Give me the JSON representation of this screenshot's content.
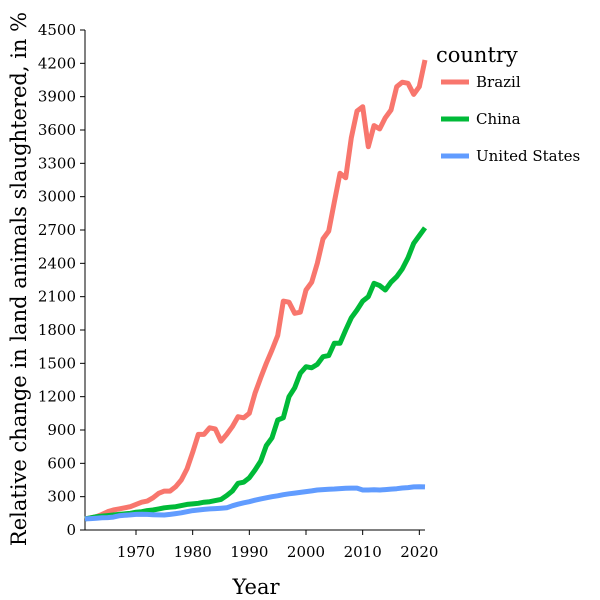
{
  "chart_data": {
    "type": "line",
    "title": "",
    "xlabel": "Year",
    "ylabel": "Relative change in land animals slaughtered, in %",
    "xlim": [
      1961,
      2021
    ],
    "ylim": [
      0,
      4500
    ],
    "x_ticks": [
      1970,
      1980,
      1990,
      2000,
      2010,
      2020
    ],
    "y_ticks": [
      0,
      300,
      600,
      900,
      1200,
      1500,
      1800,
      2100,
      2400,
      2700,
      3000,
      3300,
      3600,
      3900,
      4200,
      4500
    ],
    "grid": false,
    "legend": {
      "title": "country",
      "placement": "right"
    },
    "series": [
      {
        "name": "Brazil",
        "color": "#f8766d",
        "x": [
          1961,
          1962,
          1963,
          1964,
          1965,
          1966,
          1967,
          1968,
          1969,
          1970,
          1971,
          1972,
          1973,
          1974,
          1975,
          1976,
          1977,
          1978,
          1979,
          1980,
          1981,
          1982,
          1983,
          1984,
          1985,
          1986,
          1987,
          1988,
          1989,
          1990,
          1991,
          1992,
          1993,
          1994,
          1995,
          1996,
          1997,
          1998,
          1999,
          2000,
          2001,
          2002,
          2003,
          2004,
          2005,
          2006,
          2007,
          2008,
          2009,
          2010,
          2011,
          2012,
          2013,
          2014,
          2015,
          2016,
          2017,
          2018,
          2019,
          2020,
          2021
        ],
        "y": [
          100,
          110,
          120,
          140,
          165,
          180,
          190,
          200,
          210,
          230,
          250,
          260,
          290,
          330,
          350,
          350,
          390,
          450,
          550,
          700,
          860,
          860,
          920,
          910,
          800,
          860,
          930,
          1020,
          1010,
          1050,
          1230,
          1370,
          1500,
          1620,
          1750,
          2060,
          2050,
          1950,
          1960,
          2160,
          2230,
          2400,
          2620,
          2690,
          2950,
          3210,
          3170,
          3530,
          3770,
          3810,
          3450,
          3640,
          3610,
          3710,
          3780,
          3990,
          4030,
          4020,
          3920,
          3990,
          4230
        ]
      },
      {
        "name": "China",
        "color": "#00ba38",
        "x": [
          1961,
          1962,
          1963,
          1964,
          1965,
          1966,
          1967,
          1968,
          1969,
          1970,
          1971,
          1972,
          1973,
          1974,
          1975,
          1976,
          1977,
          1978,
          1979,
          1980,
          1981,
          1982,
          1983,
          1984,
          1985,
          1986,
          1987,
          1988,
          1989,
          1990,
          1991,
          1992,
          1993,
          1994,
          1995,
          1996,
          1997,
          1998,
          1999,
          2000,
          2001,
          2002,
          2003,
          2004,
          2005,
          2006,
          2007,
          2008,
          2009,
          2010,
          2011,
          2012,
          2013,
          2014,
          2015,
          2016,
          2017,
          2018,
          2019,
          2020,
          2021
        ],
        "y": [
          100,
          110,
          120,
          125,
          130,
          135,
          140,
          145,
          150,
          160,
          165,
          175,
          180,
          190,
          200,
          205,
          210,
          220,
          230,
          235,
          240,
          250,
          255,
          265,
          275,
          310,
          350,
          420,
          430,
          470,
          540,
          620,
          760,
          830,
          990,
          1010,
          1200,
          1280,
          1410,
          1470,
          1460,
          1490,
          1560,
          1570,
          1680,
          1680,
          1800,
          1910,
          1980,
          2060,
          2100,
          2220,
          2200,
          2160,
          2230,
          2280,
          2350,
          2450,
          2580,
          2650,
          2720
        ]
      },
      {
        "name": "United States",
        "color": "#619cff",
        "x": [
          1961,
          1962,
          1963,
          1964,
          1965,
          1966,
          1967,
          1968,
          1969,
          1970,
          1971,
          1972,
          1973,
          1974,
          1975,
          1976,
          1977,
          1978,
          1979,
          1980,
          1981,
          1982,
          1983,
          1984,
          1985,
          1986,
          1987,
          1988,
          1989,
          1990,
          1991,
          1992,
          1993,
          1994,
          1995,
          1996,
          1997,
          1998,
          1999,
          2000,
          2001,
          2002,
          2003,
          2004,
          2005,
          2006,
          2007,
          2008,
          2009,
          2010,
          2011,
          2012,
          2013,
          2014,
          2015,
          2016,
          2017,
          2018,
          2019,
          2020,
          2021
        ],
        "y": [
          100,
          103,
          106,
          110,
          112,
          116,
          128,
          132,
          136,
          140,
          142,
          140,
          138,
          136,
          135,
          140,
          148,
          155,
          165,
          175,
          180,
          185,
          190,
          193,
          196,
          200,
          218,
          232,
          245,
          255,
          268,
          280,
          290,
          300,
          308,
          318,
          326,
          332,
          338,
          346,
          352,
          360,
          364,
          367,
          369,
          373,
          375,
          377,
          377,
          360,
          360,
          362,
          360,
          364,
          368,
          372,
          378,
          382,
          388,
          390,
          388
        ]
      }
    ]
  }
}
